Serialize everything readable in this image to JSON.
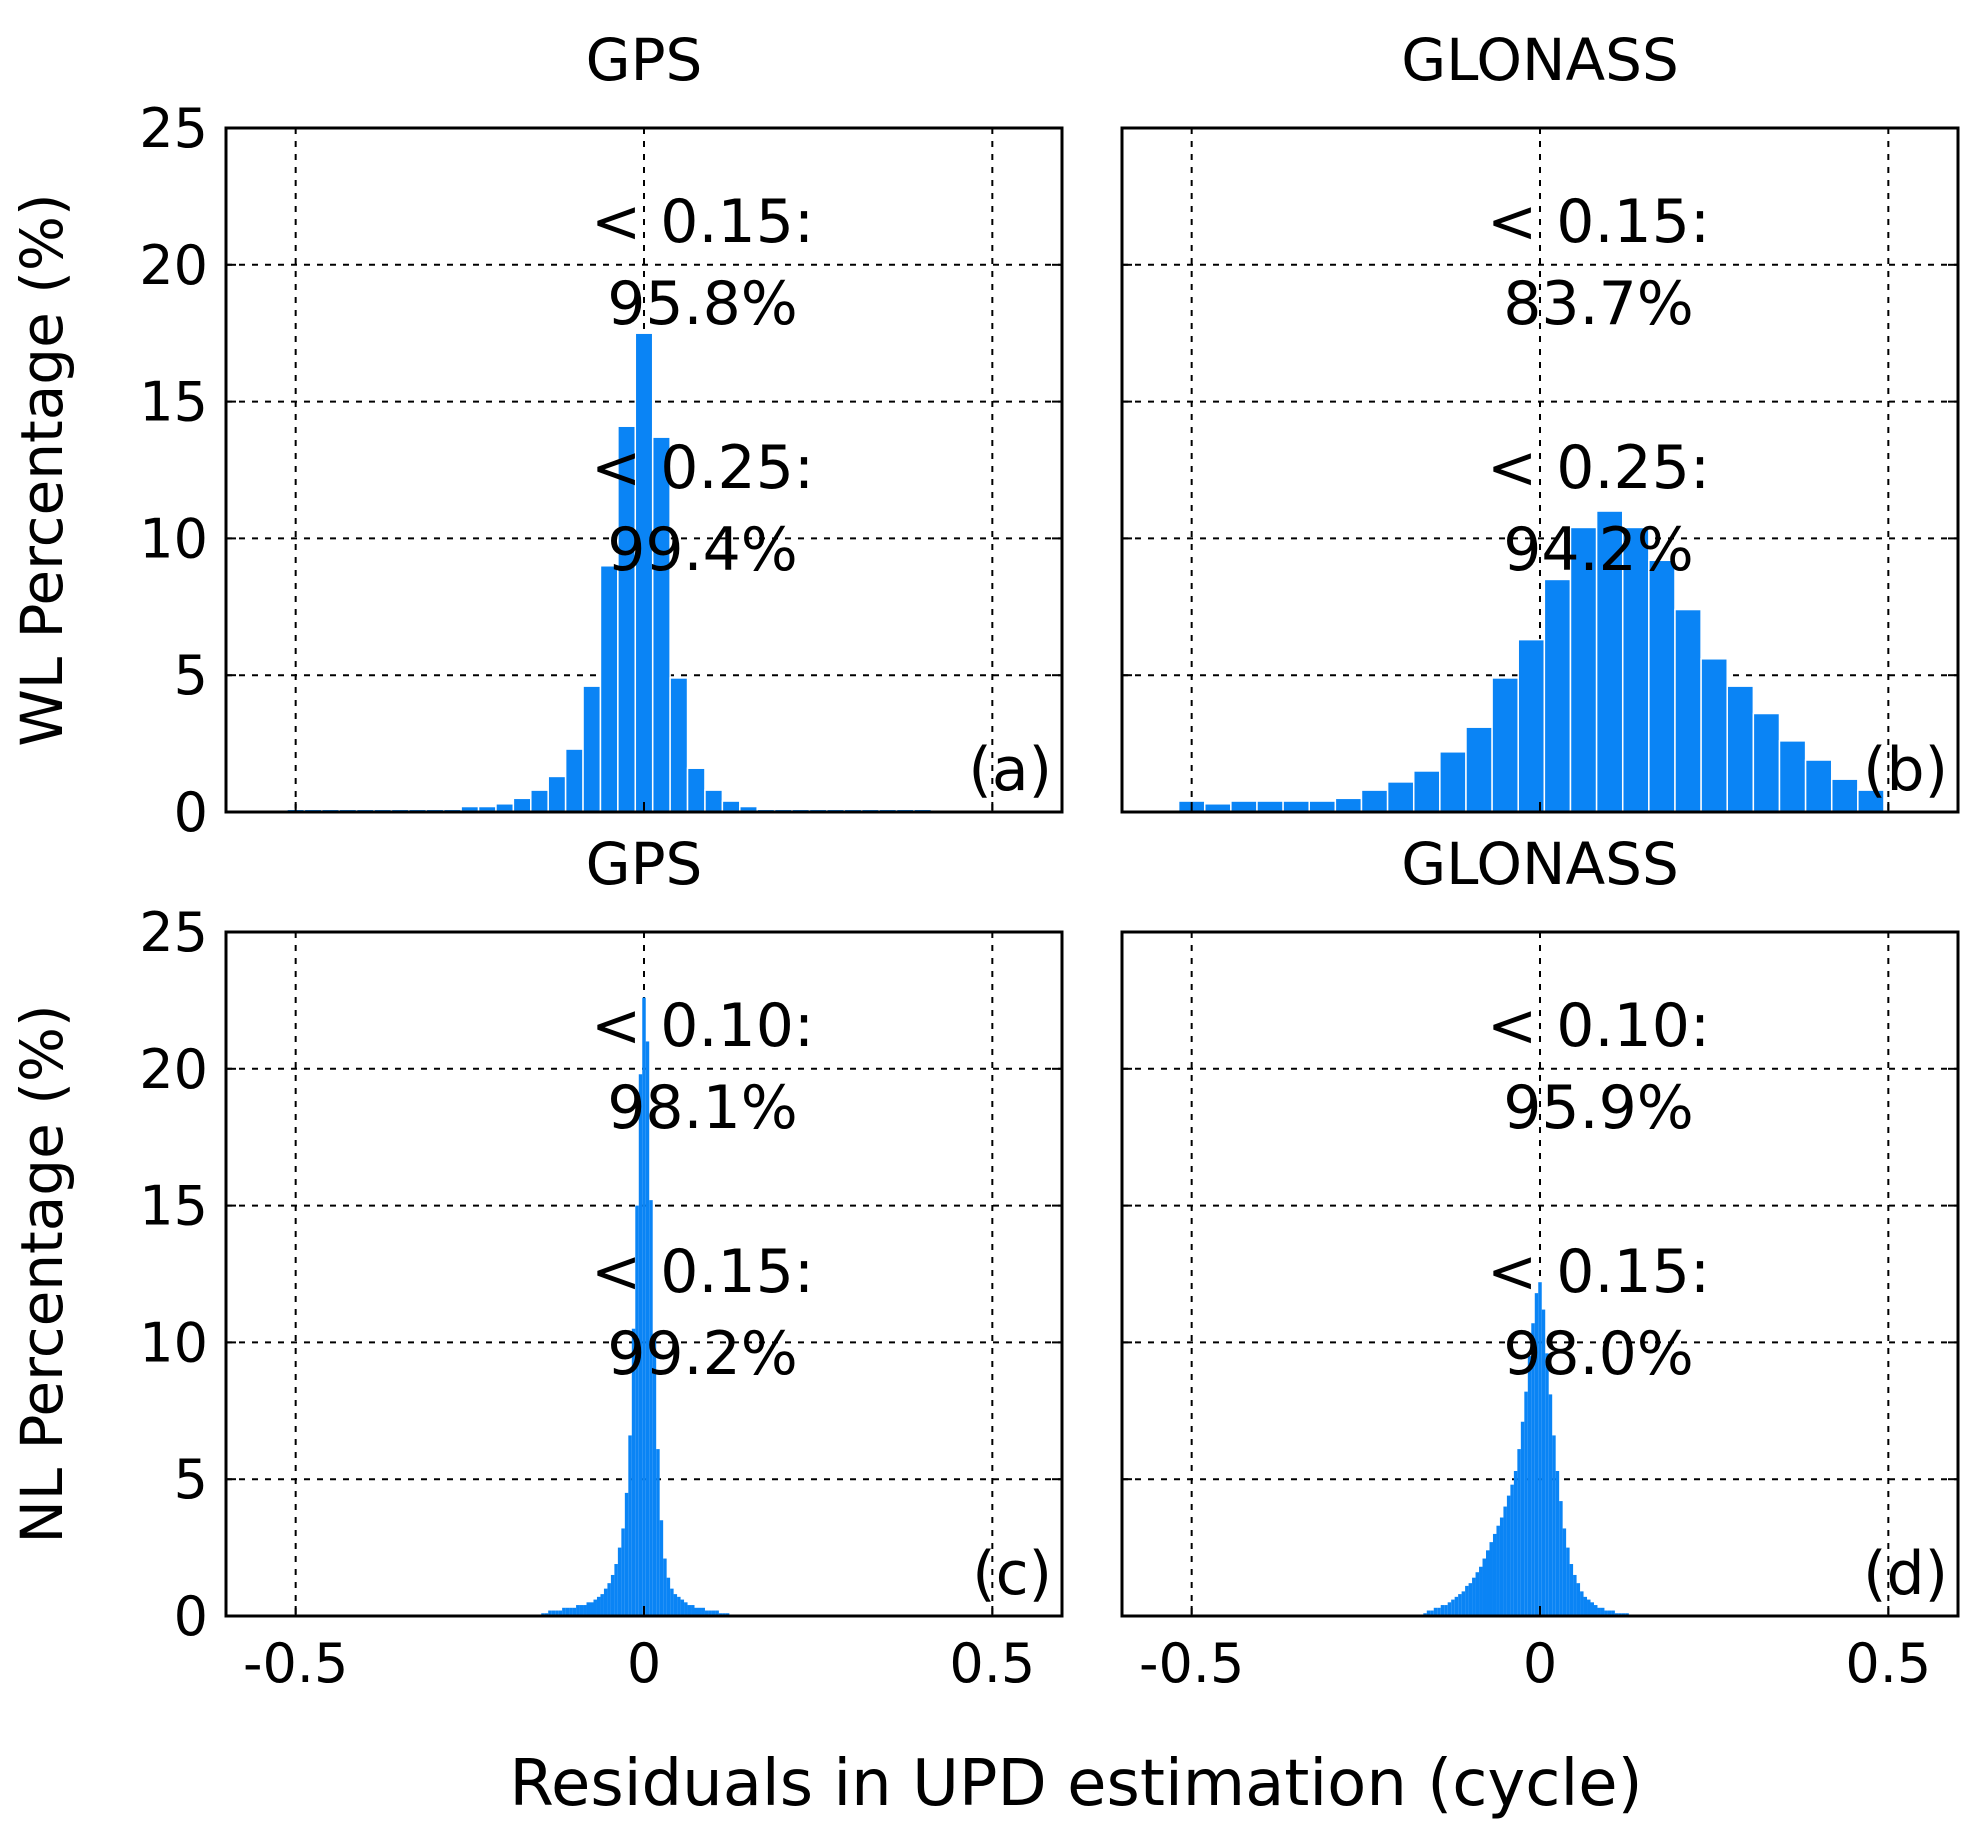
{
  "figure": {
    "common_xlabel": "Residuals in UPD estimation (cycle)",
    "bar_color": "#0a84f5",
    "frame_color": "#000000",
    "grid_color": "#000000"
  },
  "chart_data": [
    {
      "type": "bar",
      "panel": "a",
      "title": "GPS",
      "ylabel": "WL Percentage (%)",
      "xlabel": "",
      "xlim": [
        -0.6,
        0.6
      ],
      "ylim": [
        0,
        25
      ],
      "xticks": [
        "-0.5",
        "0",
        "0.5"
      ],
      "xtick_values": [
        -0.5,
        0,
        0.5
      ],
      "yticks": [
        "0",
        "5",
        "10",
        "15",
        "20",
        "25"
      ],
      "ytick_values": [
        0,
        5,
        10,
        15,
        20,
        25
      ],
      "show_xtick_labels": false,
      "grid": true,
      "panel_label": "(a)",
      "annotations": [
        "< 0.15:",
        "95.8%",
        "< 0.25:",
        "99.4%"
      ],
      "bin_width": 0.025,
      "bins": [
        {
          "x": -0.5,
          "v": 0.1
        },
        {
          "x": -0.475,
          "v": 0.1
        },
        {
          "x": -0.45,
          "v": 0.1
        },
        {
          "x": -0.425,
          "v": 0.1
        },
        {
          "x": -0.4,
          "v": 0.1
        },
        {
          "x": -0.375,
          "v": 0.1
        },
        {
          "x": -0.35,
          "v": 0.1
        },
        {
          "x": -0.325,
          "v": 0.1
        },
        {
          "x": -0.3,
          "v": 0.1
        },
        {
          "x": -0.275,
          "v": 0.1
        },
        {
          "x": -0.25,
          "v": 0.2
        },
        {
          "x": -0.225,
          "v": 0.2
        },
        {
          "x": -0.2,
          "v": 0.3
        },
        {
          "x": -0.175,
          "v": 0.5
        },
        {
          "x": -0.15,
          "v": 0.8
        },
        {
          "x": -0.125,
          "v": 1.3
        },
        {
          "x": -0.1,
          "v": 2.3
        },
        {
          "x": -0.075,
          "v": 4.6
        },
        {
          "x": -0.05,
          "v": 9.0
        },
        {
          "x": -0.025,
          "v": 14.1
        },
        {
          "x": 0.0,
          "v": 17.5
        },
        {
          "x": 0.025,
          "v": 13.7
        },
        {
          "x": 0.05,
          "v": 4.9
        },
        {
          "x": 0.075,
          "v": 1.6
        },
        {
          "x": 0.1,
          "v": 0.8
        },
        {
          "x": 0.125,
          "v": 0.4
        },
        {
          "x": 0.15,
          "v": 0.2
        },
        {
          "x": 0.175,
          "v": 0.1
        },
        {
          "x": 0.2,
          "v": 0.1
        },
        {
          "x": 0.225,
          "v": 0.1
        },
        {
          "x": 0.25,
          "v": 0.1
        },
        {
          "x": 0.275,
          "v": 0.1
        },
        {
          "x": 0.3,
          "v": 0.1
        },
        {
          "x": 0.325,
          "v": 0.1
        },
        {
          "x": 0.35,
          "v": 0.1
        },
        {
          "x": 0.375,
          "v": 0.1
        },
        {
          "x": 0.4,
          "v": 0.1
        }
      ]
    },
    {
      "type": "bar",
      "panel": "b",
      "title": "GLONASS",
      "ylabel": "",
      "xlabel": "",
      "xlim": [
        -0.6,
        0.6
      ],
      "ylim": [
        0,
        25
      ],
      "xticks": [
        "-0.5",
        "0",
        "0.5"
      ],
      "xtick_values": [
        -0.5,
        0,
        0.5
      ],
      "yticks": [
        "0",
        "5",
        "10",
        "15",
        "20",
        "25"
      ],
      "ytick_values": [
        0,
        5,
        10,
        15,
        20,
        25
      ],
      "show_xtick_labels": false,
      "show_ytick_labels": false,
      "grid": true,
      "panel_label": "(b)",
      "annotations": [
        "< 0.15:",
        "83.7%",
        "< 0.25:",
        "94.2%"
      ],
      "bin_width": 0.0375,
      "bins": [
        {
          "x": -0.5,
          "v": 0.4
        },
        {
          "x": -0.4625,
          "v": 0.3
        },
        {
          "x": -0.425,
          "v": 0.4
        },
        {
          "x": -0.3875,
          "v": 0.4
        },
        {
          "x": -0.35,
          "v": 0.4
        },
        {
          "x": -0.3125,
          "v": 0.4
        },
        {
          "x": -0.275,
          "v": 0.5
        },
        {
          "x": -0.2375,
          "v": 0.8
        },
        {
          "x": -0.2,
          "v": 1.1
        },
        {
          "x": -0.1625,
          "v": 1.5
        },
        {
          "x": -0.125,
          "v": 2.2
        },
        {
          "x": -0.0875,
          "v": 3.1
        },
        {
          "x": -0.05,
          "v": 4.9
        },
        {
          "x": -0.0125,
          "v": 6.3
        },
        {
          "x": 0.025,
          "v": 8.5
        },
        {
          "x": 0.0625,
          "v": 10.4
        },
        {
          "x": 0.1,
          "v": 11.0
        },
        {
          "x": 0.1375,
          "v": 10.4
        },
        {
          "x": 0.175,
          "v": 9.2
        },
        {
          "x": 0.2125,
          "v": 7.4
        },
        {
          "x": 0.25,
          "v": 5.6
        },
        {
          "x": 0.2875,
          "v": 4.6
        },
        {
          "x": 0.325,
          "v": 3.6
        },
        {
          "x": 0.3625,
          "v": 2.6
        },
        {
          "x": 0.4,
          "v": 1.9
        },
        {
          "x": 0.4375,
          "v": 1.2
        },
        {
          "x": 0.475,
          "v": 0.8
        }
      ]
    },
    {
      "type": "bar",
      "panel": "c",
      "title": "GPS",
      "ylabel": "NL Percentage (%)",
      "xlabel": "",
      "xlim": [
        -0.6,
        0.6
      ],
      "ylim": [
        0,
        25
      ],
      "xticks": [
        "-0.5",
        "0",
        "0.5"
      ],
      "xtick_values": [
        -0.5,
        0,
        0.5
      ],
      "yticks": [
        "0",
        "5",
        "10",
        "15",
        "20",
        "25"
      ],
      "ytick_values": [
        0,
        5,
        10,
        15,
        20,
        25
      ],
      "show_xtick_labels": true,
      "grid": true,
      "panel_label": "(c)",
      "annotations": [
        "< 0.10:",
        "98.1%",
        "< 0.15:",
        "99.2%"
      ],
      "bin_width": 0.005,
      "bins": [
        {
          "x": -0.145,
          "v": 0.1
        },
        {
          "x": -0.14,
          "v": 0.1
        },
        {
          "x": -0.135,
          "v": 0.2
        },
        {
          "x": -0.13,
          "v": 0.2
        },
        {
          "x": -0.125,
          "v": 0.2
        },
        {
          "x": -0.12,
          "v": 0.2
        },
        {
          "x": -0.115,
          "v": 0.3
        },
        {
          "x": -0.11,
          "v": 0.3
        },
        {
          "x": -0.105,
          "v": 0.3
        },
        {
          "x": -0.1,
          "v": 0.3
        },
        {
          "x": -0.095,
          "v": 0.4
        },
        {
          "x": -0.09,
          "v": 0.4
        },
        {
          "x": -0.085,
          "v": 0.4
        },
        {
          "x": -0.08,
          "v": 0.5
        },
        {
          "x": -0.075,
          "v": 0.5
        },
        {
          "x": -0.07,
          "v": 0.6
        },
        {
          "x": -0.065,
          "v": 0.7
        },
        {
          "x": -0.06,
          "v": 0.8
        },
        {
          "x": -0.055,
          "v": 1.0
        },
        {
          "x": -0.05,
          "v": 1.2
        },
        {
          "x": -0.045,
          "v": 1.5
        },
        {
          "x": -0.04,
          "v": 1.9
        },
        {
          "x": -0.035,
          "v": 2.5
        },
        {
          "x": -0.03,
          "v": 3.2
        },
        {
          "x": -0.025,
          "v": 4.5
        },
        {
          "x": -0.02,
          "v": 6.6
        },
        {
          "x": -0.015,
          "v": 10.5
        },
        {
          "x": -0.01,
          "v": 15.0
        },
        {
          "x": -0.005,
          "v": 19.8
        },
        {
          "x": 0.0,
          "v": 22.6
        },
        {
          "x": 0.005,
          "v": 21.0
        },
        {
          "x": 0.01,
          "v": 15.2
        },
        {
          "x": 0.015,
          "v": 10.1
        },
        {
          "x": 0.02,
          "v": 6.1
        },
        {
          "x": 0.025,
          "v": 3.5
        },
        {
          "x": 0.03,
          "v": 2.1
        },
        {
          "x": 0.035,
          "v": 1.4
        },
        {
          "x": 0.04,
          "v": 1.0
        },
        {
          "x": 0.045,
          "v": 0.8
        },
        {
          "x": 0.05,
          "v": 0.7
        },
        {
          "x": 0.055,
          "v": 0.6
        },
        {
          "x": 0.06,
          "v": 0.5
        },
        {
          "x": 0.065,
          "v": 0.4
        },
        {
          "x": 0.07,
          "v": 0.4
        },
        {
          "x": 0.075,
          "v": 0.3
        },
        {
          "x": 0.08,
          "v": 0.3
        },
        {
          "x": 0.085,
          "v": 0.3
        },
        {
          "x": 0.09,
          "v": 0.2
        },
        {
          "x": 0.095,
          "v": 0.2
        },
        {
          "x": 0.1,
          "v": 0.2
        },
        {
          "x": 0.105,
          "v": 0.2
        },
        {
          "x": 0.11,
          "v": 0.1
        },
        {
          "x": 0.115,
          "v": 0.1
        },
        {
          "x": 0.12,
          "v": 0.1
        }
      ]
    },
    {
      "type": "bar",
      "panel": "d",
      "title": "GLONASS",
      "ylabel": "",
      "xlabel": "",
      "xlim": [
        -0.6,
        0.6
      ],
      "ylim": [
        0,
        25
      ],
      "xticks": [
        "-0.5",
        "0",
        "0.5"
      ],
      "xtick_values": [
        -0.5,
        0,
        0.5
      ],
      "yticks": [
        "0",
        "5",
        "10",
        "15",
        "20",
        "25"
      ],
      "ytick_values": [
        0,
        5,
        10,
        15,
        20,
        25
      ],
      "show_xtick_labels": true,
      "show_ytick_labels": false,
      "grid": true,
      "panel_label": "(d)",
      "annotations": [
        "< 0.10:",
        "95.9%",
        "< 0.15:",
        "98.0%"
      ],
      "bin_width": 0.005,
      "bins": [
        {
          "x": -0.165,
          "v": 0.1
        },
        {
          "x": -0.16,
          "v": 0.2
        },
        {
          "x": -0.155,
          "v": 0.2
        },
        {
          "x": -0.15,
          "v": 0.3
        },
        {
          "x": -0.145,
          "v": 0.3
        },
        {
          "x": -0.14,
          "v": 0.4
        },
        {
          "x": -0.135,
          "v": 0.4
        },
        {
          "x": -0.13,
          "v": 0.5
        },
        {
          "x": -0.125,
          "v": 0.6
        },
        {
          "x": -0.12,
          "v": 0.7
        },
        {
          "x": -0.115,
          "v": 0.8
        },
        {
          "x": -0.11,
          "v": 0.9
        },
        {
          "x": -0.105,
          "v": 1.1
        },
        {
          "x": -0.1,
          "v": 1.2
        },
        {
          "x": -0.095,
          "v": 1.4
        },
        {
          "x": -0.09,
          "v": 1.6
        },
        {
          "x": -0.085,
          "v": 1.8
        },
        {
          "x": -0.08,
          "v": 2.1
        },
        {
          "x": -0.075,
          "v": 2.4
        },
        {
          "x": -0.07,
          "v": 2.7
        },
        {
          "x": -0.065,
          "v": 3.0
        },
        {
          "x": -0.06,
          "v": 3.3
        },
        {
          "x": -0.055,
          "v": 3.6
        },
        {
          "x": -0.05,
          "v": 4.0
        },
        {
          "x": -0.045,
          "v": 4.4
        },
        {
          "x": -0.04,
          "v": 4.8
        },
        {
          "x": -0.035,
          "v": 5.3
        },
        {
          "x": -0.03,
          "v": 6.1
        },
        {
          "x": -0.025,
          "v": 7.1
        },
        {
          "x": -0.02,
          "v": 8.2
        },
        {
          "x": -0.015,
          "v": 9.5
        },
        {
          "x": -0.01,
          "v": 10.7
        },
        {
          "x": -0.005,
          "v": 11.8
        },
        {
          "x": 0.0,
          "v": 12.2
        },
        {
          "x": 0.005,
          "v": 11.2
        },
        {
          "x": 0.01,
          "v": 9.6
        },
        {
          "x": 0.015,
          "v": 8.1
        },
        {
          "x": 0.02,
          "v": 6.6
        },
        {
          "x": 0.025,
          "v": 5.3
        },
        {
          "x": 0.03,
          "v": 4.2
        },
        {
          "x": 0.035,
          "v": 3.2
        },
        {
          "x": 0.04,
          "v": 2.5
        },
        {
          "x": 0.045,
          "v": 1.9
        },
        {
          "x": 0.05,
          "v": 1.5
        },
        {
          "x": 0.055,
          "v": 1.2
        },
        {
          "x": 0.06,
          "v": 0.9
        },
        {
          "x": 0.065,
          "v": 0.7
        },
        {
          "x": 0.07,
          "v": 0.6
        },
        {
          "x": 0.075,
          "v": 0.5
        },
        {
          "x": 0.08,
          "v": 0.4
        },
        {
          "x": 0.085,
          "v": 0.3
        },
        {
          "x": 0.09,
          "v": 0.3
        },
        {
          "x": 0.095,
          "v": 0.2
        },
        {
          "x": 0.1,
          "v": 0.2
        },
        {
          "x": 0.105,
          "v": 0.2
        },
        {
          "x": 0.11,
          "v": 0.1
        },
        {
          "x": 0.115,
          "v": 0.1
        },
        {
          "x": 0.12,
          "v": 0.1
        },
        {
          "x": 0.125,
          "v": 0.1
        }
      ]
    }
  ]
}
